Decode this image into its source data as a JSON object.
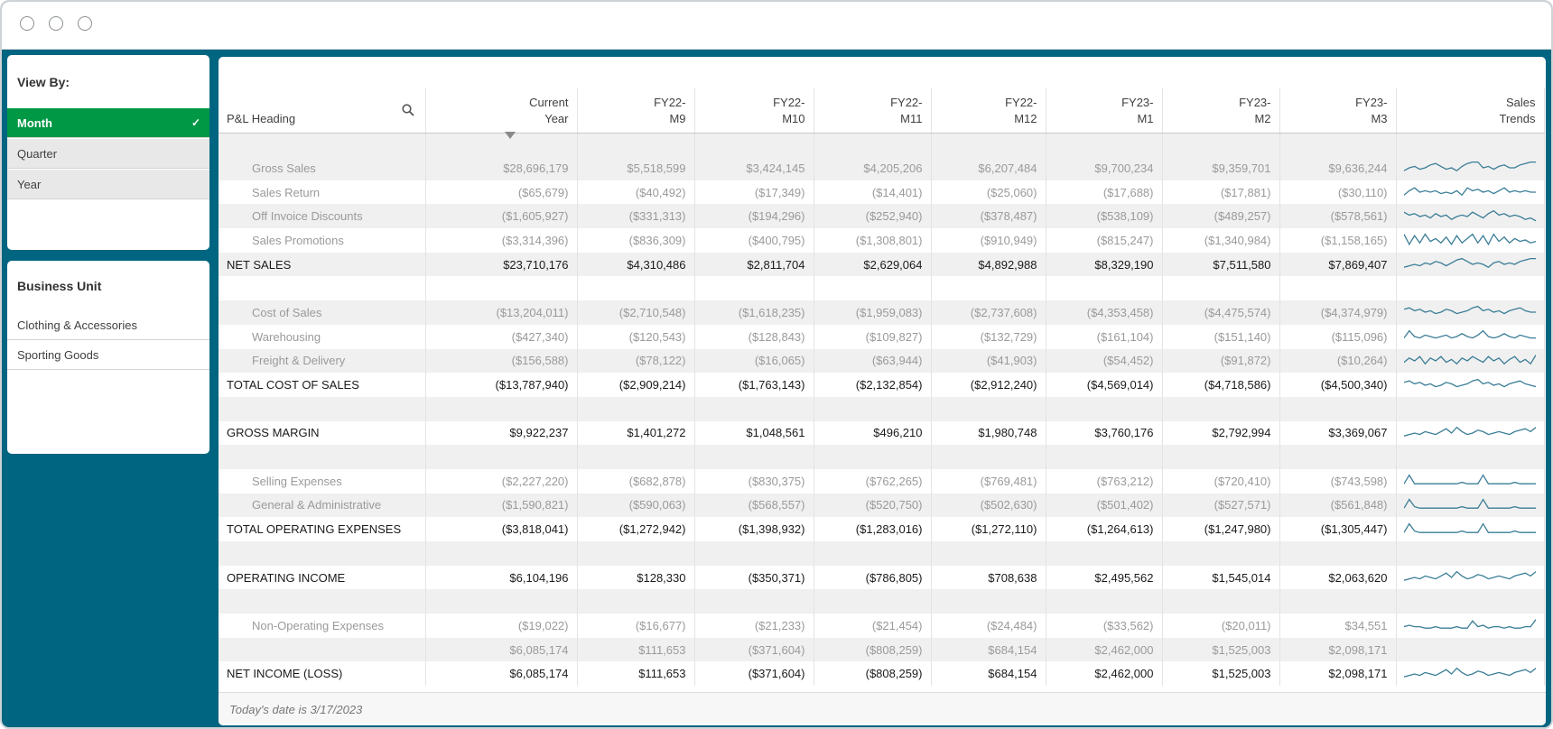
{
  "filters": {
    "view_by": {
      "title": "View By:",
      "options": [
        {
          "label": "Month",
          "selected": true
        },
        {
          "label": "Quarter",
          "selected": false
        },
        {
          "label": "Year",
          "selected": false
        }
      ]
    },
    "business_unit": {
      "title": "Business Unit",
      "options": [
        "Clothing & Accessories",
        "Sporting Goods"
      ]
    }
  },
  "table": {
    "headers": [
      "P&L Heading",
      "Current\nYear",
      "FY22-\nM9",
      "FY22-\nM10",
      "FY22-\nM11",
      "FY22-\nM12",
      "FY23-\nM1",
      "FY23-\nM2",
      "FY23-\nM3",
      "Sales\nTrends"
    ],
    "rows": [
      {
        "label": "",
        "type": "blank",
        "values": [
          "",
          "",
          "",
          "",
          "",
          "",
          "",
          ""
        ]
      },
      {
        "label": "Gross Sales",
        "type": "child",
        "values": [
          "$28,696,179",
          "$5,518,599",
          "$3,424,145",
          "$4,205,206",
          "$6,207,484",
          "$9,700,234",
          "$9,359,701",
          "$9,636,244"
        ],
        "trend": [
          0.3,
          0.5,
          0.6,
          0.4,
          0.5,
          0.7,
          0.8,
          0.6,
          0.4,
          0.5,
          0.3,
          0.6,
          0.8,
          0.9,
          0.9,
          0.5,
          0.6,
          0.4,
          0.6,
          0.7,
          0.5,
          0.5,
          0.7,
          0.8,
          0.9,
          0.9
        ]
      },
      {
        "label": "Sales Return",
        "type": "child",
        "values": [
          "($65,679)",
          "($40,492)",
          "($17,349)",
          "($14,401)",
          "($25,060)",
          "($17,688)",
          "($17,881)",
          "($30,110)"
        ],
        "trend": [
          0.3,
          0.6,
          0.8,
          0.5,
          0.6,
          0.5,
          0.6,
          0.4,
          0.5,
          0.4,
          0.6,
          0.3,
          0.8,
          0.6,
          0.7,
          0.5,
          0.6,
          0.4,
          0.6,
          0.8,
          0.5,
          0.6,
          0.5,
          0.6,
          0.5,
          0.5
        ]
      },
      {
        "label": "Off Invoice Discounts",
        "type": "child",
        "values": [
          "($1,605,927)",
          "($331,313)",
          "($194,296)",
          "($252,940)",
          "($378,487)",
          "($538,109)",
          "($489,257)",
          "($578,561)"
        ],
        "trend": [
          0.8,
          0.6,
          0.7,
          0.5,
          0.6,
          0.4,
          0.7,
          0.5,
          0.6,
          0.3,
          0.5,
          0.6,
          0.5,
          0.8,
          0.6,
          0.4,
          0.7,
          0.9,
          0.6,
          0.7,
          0.5,
          0.6,
          0.5,
          0.3,
          0.4,
          0.2
        ]
      },
      {
        "label": "Sales Promotions",
        "type": "child",
        "values": [
          "($3,314,396)",
          "($836,309)",
          "($400,795)",
          "($1,308,801)",
          "($910,949)",
          "($815,247)",
          "($1,340,984)",
          "($1,158,165)"
        ],
        "trend": [
          0.9,
          0.2,
          0.8,
          0.3,
          0.9,
          0.4,
          0.6,
          0.3,
          0.7,
          0.2,
          0.8,
          0.3,
          0.6,
          0.9,
          0.3,
          0.8,
          0.2,
          0.9,
          0.4,
          0.7,
          0.3,
          0.6,
          0.4,
          0.5,
          0.3,
          0.4
        ]
      },
      {
        "label": "NET SALES",
        "type": "bold",
        "values": [
          "$23,710,176",
          "$4,310,486",
          "$2,811,704",
          "$2,629,064",
          "$4,892,988",
          "$8,329,190",
          "$7,511,580",
          "$7,869,407"
        ],
        "trend": [
          0.3,
          0.4,
          0.5,
          0.4,
          0.6,
          0.5,
          0.7,
          0.6,
          0.4,
          0.6,
          0.8,
          0.9,
          0.7,
          0.5,
          0.6,
          0.5,
          0.3,
          0.6,
          0.7,
          0.5,
          0.6,
          0.5,
          0.7,
          0.8,
          0.9,
          0.9
        ]
      },
      {
        "label": "",
        "type": "blank",
        "values": [
          "",
          "",
          "",
          "",
          "",
          "",
          "",
          ""
        ]
      },
      {
        "label": "Cost of Sales",
        "type": "child",
        "values": [
          "($13,204,011)",
          "($2,710,548)",
          "($1,618,235)",
          "($1,959,083)",
          "($2,737,608)",
          "($4,353,458)",
          "($4,475,574)",
          "($4,374,979)"
        ],
        "trend": [
          0.7,
          0.8,
          0.6,
          0.7,
          0.5,
          0.6,
          0.4,
          0.5,
          0.7,
          0.6,
          0.4,
          0.5,
          0.6,
          0.8,
          0.9,
          0.6,
          0.7,
          0.5,
          0.6,
          0.4,
          0.6,
          0.7,
          0.8,
          0.6,
          0.5,
          0.5
        ]
      },
      {
        "label": "Warehousing",
        "type": "child",
        "values": [
          "($427,340)",
          "($120,543)",
          "($128,843)",
          "($109,827)",
          "($132,729)",
          "($161,104)",
          "($151,140)",
          "($115,096)"
        ],
        "trend": [
          0.4,
          0.9,
          0.5,
          0.4,
          0.6,
          0.5,
          0.4,
          0.5,
          0.6,
          0.4,
          0.5,
          0.7,
          0.5,
          0.4,
          0.6,
          0.9,
          0.5,
          0.4,
          0.5,
          0.7,
          0.5,
          0.4,
          0.6,
          0.5,
          0.4,
          0.4
        ]
      },
      {
        "label": "Freight & Delivery",
        "type": "child",
        "values": [
          "($156,588)",
          "($78,122)",
          "($16,065)",
          "($63,944)",
          "($41,903)",
          "($54,452)",
          "($91,872)",
          "($10,264)"
        ],
        "trend": [
          0.4,
          0.7,
          0.5,
          0.8,
          0.3,
          0.7,
          0.5,
          0.8,
          0.4,
          0.6,
          0.3,
          0.7,
          0.5,
          0.8,
          0.6,
          0.4,
          0.8,
          0.5,
          0.7,
          0.3,
          0.6,
          0.8,
          0.4,
          0.6,
          0.3,
          0.9
        ]
      },
      {
        "label": "TOTAL COST OF SALES",
        "type": "bold",
        "values": [
          "($13,787,940)",
          "($2,909,214)",
          "($1,763,143)",
          "($2,132,854)",
          "($2,912,240)",
          "($4,569,014)",
          "($4,718,586)",
          "($4,500,340)"
        ],
        "trend": [
          0.7,
          0.8,
          0.6,
          0.7,
          0.5,
          0.6,
          0.4,
          0.5,
          0.7,
          0.6,
          0.4,
          0.5,
          0.6,
          0.8,
          0.9,
          0.6,
          0.7,
          0.5,
          0.6,
          0.4,
          0.6,
          0.7,
          0.8,
          0.6,
          0.5,
          0.4
        ]
      },
      {
        "label": "",
        "type": "blank",
        "values": [
          "",
          "",
          "",
          "",
          "",
          "",
          "",
          ""
        ]
      },
      {
        "label": "GROSS MARGIN",
        "type": "bold",
        "values": [
          "$9,922,237",
          "$1,401,272",
          "$1,048,561",
          "$496,210",
          "$1,980,748",
          "$3,760,176",
          "$2,792,994",
          "$3,369,067"
        ],
        "trend": [
          0.3,
          0.4,
          0.5,
          0.4,
          0.6,
          0.5,
          0.4,
          0.6,
          0.8,
          0.5,
          0.9,
          0.6,
          0.4,
          0.5,
          0.7,
          0.6,
          0.4,
          0.5,
          0.6,
          0.5,
          0.4,
          0.6,
          0.7,
          0.8,
          0.6,
          0.9
        ]
      },
      {
        "label": "",
        "type": "blank",
        "values": [
          "",
          "",
          "",
          "",
          "",
          "",
          "",
          ""
        ]
      },
      {
        "label": "Selling Expenses",
        "type": "child",
        "values": [
          "($2,227,220)",
          "($682,878)",
          "($830,375)",
          "($762,265)",
          "($769,481)",
          "($763,212)",
          "($720,410)",
          "($743,598)"
        ],
        "trend": [
          0.3,
          0.9,
          0.3,
          0.3,
          0.3,
          0.3,
          0.3,
          0.3,
          0.3,
          0.3,
          0.3,
          0.4,
          0.3,
          0.3,
          0.3,
          0.9,
          0.3,
          0.3,
          0.3,
          0.3,
          0.3,
          0.4,
          0.3,
          0.3,
          0.3,
          0.3
        ]
      },
      {
        "label": "General & Administrative",
        "type": "child",
        "values": [
          "($1,590,821)",
          "($590,063)",
          "($568,557)",
          "($520,750)",
          "($502,630)",
          "($501,402)",
          "($527,571)",
          "($561,848)"
        ],
        "trend": [
          0.3,
          0.9,
          0.4,
          0.3,
          0.3,
          0.3,
          0.3,
          0.3,
          0.3,
          0.3,
          0.3,
          0.4,
          0.3,
          0.3,
          0.3,
          0.9,
          0.3,
          0.3,
          0.3,
          0.3,
          0.3,
          0.4,
          0.3,
          0.3,
          0.3,
          0.3
        ]
      },
      {
        "label": "TOTAL OPERATING EXPENSES",
        "type": "bold",
        "values": [
          "($3,818,041)",
          "($1,272,942)",
          "($1,398,932)",
          "($1,283,016)",
          "($1,272,110)",
          "($1,264,613)",
          "($1,247,980)",
          "($1,305,447)"
        ],
        "trend": [
          0.3,
          0.9,
          0.4,
          0.3,
          0.3,
          0.3,
          0.3,
          0.3,
          0.3,
          0.3,
          0.3,
          0.4,
          0.3,
          0.3,
          0.3,
          0.9,
          0.3,
          0.3,
          0.3,
          0.3,
          0.3,
          0.4,
          0.3,
          0.3,
          0.3,
          0.3
        ]
      },
      {
        "label": "",
        "type": "blank",
        "values": [
          "",
          "",
          "",
          "",
          "",
          "",
          "",
          ""
        ]
      },
      {
        "label": "OPERATING INCOME",
        "type": "bold",
        "values": [
          "$6,104,196",
          "$128,330",
          "($350,371)",
          "($786,805)",
          "$708,638",
          "$2,495,562",
          "$1,545,014",
          "$2,063,620"
        ],
        "trend": [
          0.3,
          0.4,
          0.5,
          0.4,
          0.6,
          0.5,
          0.4,
          0.6,
          0.8,
          0.5,
          0.9,
          0.6,
          0.4,
          0.5,
          0.7,
          0.6,
          0.4,
          0.5,
          0.6,
          0.5,
          0.4,
          0.6,
          0.7,
          0.8,
          0.6,
          0.9
        ]
      },
      {
        "label": "",
        "type": "blank",
        "values": [
          "",
          "",
          "",
          "",
          "",
          "",
          "",
          ""
        ]
      },
      {
        "label": "Non-Operating Expenses",
        "type": "child",
        "values": [
          "($19,022)",
          "($16,677)",
          "($21,233)",
          "($21,454)",
          "($24,484)",
          "($33,562)",
          "($20,011)",
          "$34,551"
        ],
        "trend": [
          0.4,
          0.5,
          0.4,
          0.4,
          0.3,
          0.3,
          0.4,
          0.3,
          0.3,
          0.3,
          0.4,
          0.3,
          0.3,
          0.8,
          0.4,
          0.5,
          0.3,
          0.4,
          0.4,
          0.3,
          0.4,
          0.3,
          0.3,
          0.4,
          0.4,
          0.9
        ]
      },
      {
        "label": "",
        "type": "child",
        "values": [
          "$6,085,174",
          "$111,653",
          "($371,604)",
          "($808,259)",
          "$684,154",
          "$2,462,000",
          "$1,525,003",
          "$2,098,171"
        ]
      },
      {
        "label": "NET INCOME (LOSS)",
        "type": "bold",
        "values": [
          "$6,085,174",
          "$111,653",
          "($371,604)",
          "($808,259)",
          "$684,154",
          "$2,462,000",
          "$1,525,003",
          "$2,098,171"
        ],
        "trend": [
          0.3,
          0.4,
          0.5,
          0.4,
          0.6,
          0.5,
          0.4,
          0.6,
          0.8,
          0.5,
          0.9,
          0.6,
          0.4,
          0.5,
          0.7,
          0.6,
          0.4,
          0.5,
          0.6,
          0.5,
          0.4,
          0.6,
          0.7,
          0.8,
          0.6,
          0.9
        ]
      }
    ]
  },
  "footer": {
    "text": "Today's date is 3/17/2023"
  },
  "colors": {
    "frame": "#006580",
    "selected": "#009845",
    "sparkline": "#3a7d96"
  }
}
